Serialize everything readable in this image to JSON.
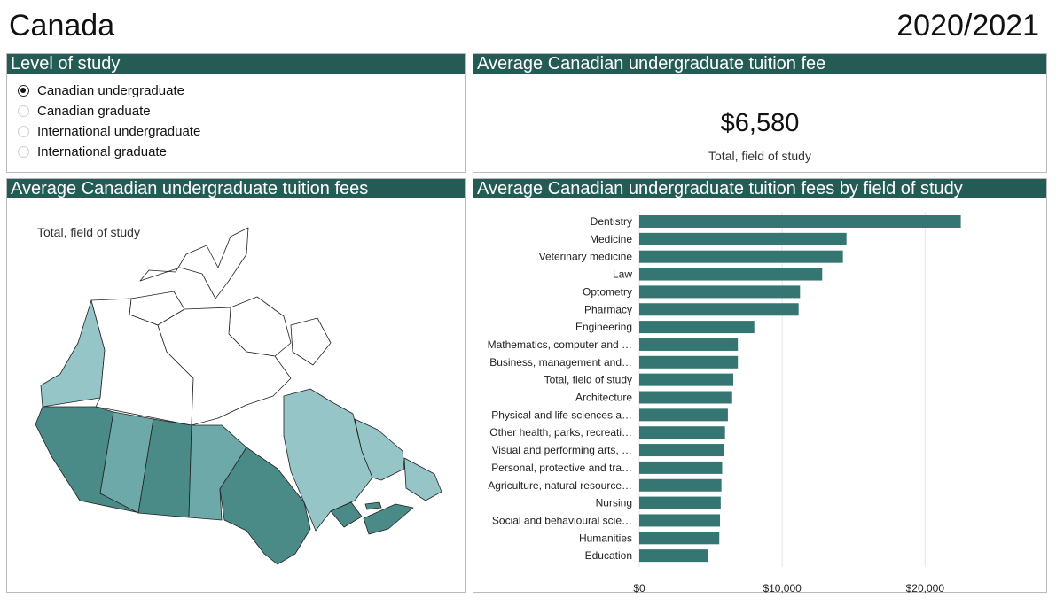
{
  "header": {
    "country": "Canada",
    "year": "2020/2021"
  },
  "level_panel": {
    "title": "Level of study",
    "options": [
      {
        "label": "Canadian undergraduate",
        "selected": true
      },
      {
        "label": "Canadian graduate",
        "selected": false
      },
      {
        "label": "International undergraduate",
        "selected": false
      },
      {
        "label": "International graduate",
        "selected": false
      }
    ]
  },
  "fee_panel": {
    "title": "Average Canadian undergraduate tuition fee",
    "value": "$6,580",
    "caption": "Total, field of study"
  },
  "map_panel": {
    "title": "Average Canadian undergraduate tuition fees",
    "caption": "Total, field of study",
    "colors": {
      "light": "#95c5c6",
      "mid": "#6da9a9",
      "dark": "#4a8a87",
      "none": "#ffffff"
    }
  },
  "bar_panel": {
    "title": "Average Canadian undergraduate tuition fees by field of study"
  },
  "chart_data": {
    "type": "bar",
    "orientation": "horizontal",
    "categories": [
      "Dentistry",
      "Medicine",
      "Veterinary medicine",
      "Law",
      "Optometry",
      "Pharmacy",
      "Engineering",
      "Mathematics, computer and …",
      "Business, management and…",
      "Total, field of study",
      "Architecture",
      "Physical and life sciences a…",
      "Other health, parks, recreati…",
      "Visual and performing arts, …",
      "Personal, protective and tra…",
      "Agriculture, natural resource…",
      "Nursing",
      "Social and behavioural scie…",
      "Humanities",
      "Education"
    ],
    "values": [
      22500,
      14500,
      14250,
      12800,
      11250,
      11150,
      8050,
      6900,
      6900,
      6580,
      6500,
      6200,
      6000,
      5900,
      5800,
      5750,
      5700,
      5650,
      5600,
      4800
    ],
    "xlim": [
      0,
      26000
    ],
    "xticks": [
      0,
      10000,
      20000
    ],
    "xtick_labels": [
      "$0",
      "$10,000",
      "$20,000"
    ],
    "bar_color": "#357572",
    "grid": true
  }
}
